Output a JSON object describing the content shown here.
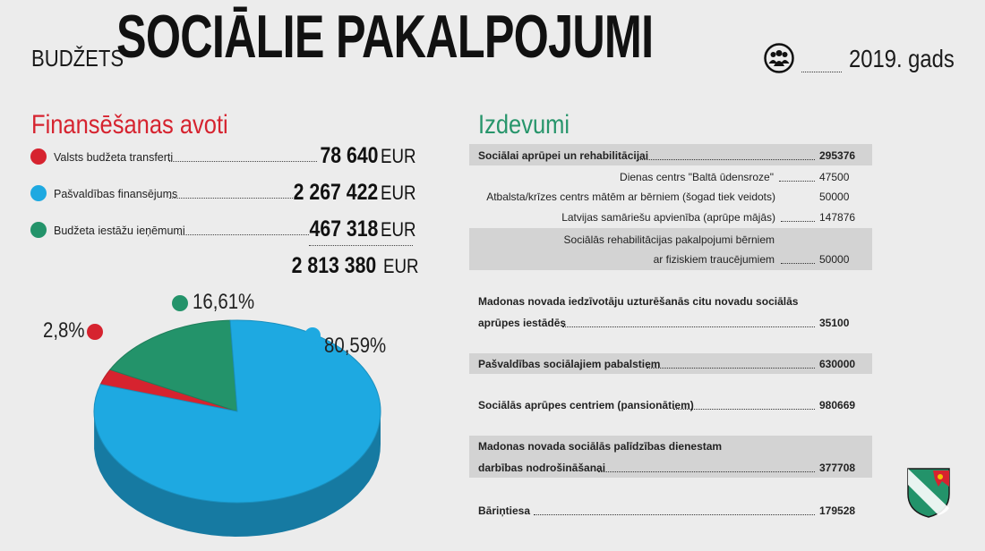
{
  "header": {
    "prefix": "BUDŽETS",
    "title": "SOCIĀLIE PAKALPOJUMI",
    "year": "2019. gads",
    "icon": "people-group-icon"
  },
  "funding": {
    "title": "Finansēšanas avoti",
    "items": [
      {
        "label": "Valsts budžeta transferti",
        "amount": "78 640",
        "unit": "EUR",
        "color": "#d6232f"
      },
      {
        "label": "Pašvaldības finansējums",
        "amount": "2 267 422",
        "unit": "EUR",
        "color": "#1ea9e1"
      },
      {
        "label": "Budžeta iestāžu ieņēmumi",
        "amount": "467 318",
        "unit": "EUR",
        "color": "#23936a"
      }
    ],
    "total": {
      "amount": "2 813 380",
      "unit": "EUR"
    }
  },
  "chart_data": {
    "type": "pie",
    "slices": [
      {
        "label": "2,8%",
        "value": 2.8,
        "color": "#d6232f"
      },
      {
        "label": "16,61%",
        "value": 16.61,
        "color": "#23936a"
      },
      {
        "label": "80,59%",
        "value": 80.59,
        "color": "#1ea9e1"
      }
    ]
  },
  "expenses": {
    "title": "Izdevumi",
    "rows": [
      {
        "label": "Sociālai aprūpei un rehabilitācijai",
        "value": "295376"
      },
      {
        "label": "Dienas centrs \"Baltā ūdensroze\"",
        "value": "47500"
      },
      {
        "label": "Atbalsta/krīzes centrs mātēm ar bērniem (šogad tiek veidots)",
        "value": "50000"
      },
      {
        "label": "Latvijas samāriešu apvienība (aprūpe mājās)",
        "value": "147876"
      },
      {
        "label1": "Sociālās rehabilitācijas pakalpojumi bērniem",
        "label2": "ar fiziskiem traucējumiem",
        "value": "50000"
      },
      {
        "label1": "Madonas novada iedzīvotāju uzturēšanās citu novadu sociālās",
        "label2": "aprūpes iestādēs",
        "value": "35100"
      },
      {
        "label": "Pašvaldības sociālajiem pabalstiem",
        "value": "630000"
      },
      {
        "label": "Sociālās aprūpes centriem (pansionātiem)",
        "value": "980669"
      },
      {
        "label1": "Madonas novada sociālās palīdzības dienestam",
        "label2": "darbības nodrošināšanai",
        "value": "377708"
      },
      {
        "label": "Bāriņtiesa",
        "value": "179528"
      }
    ]
  }
}
